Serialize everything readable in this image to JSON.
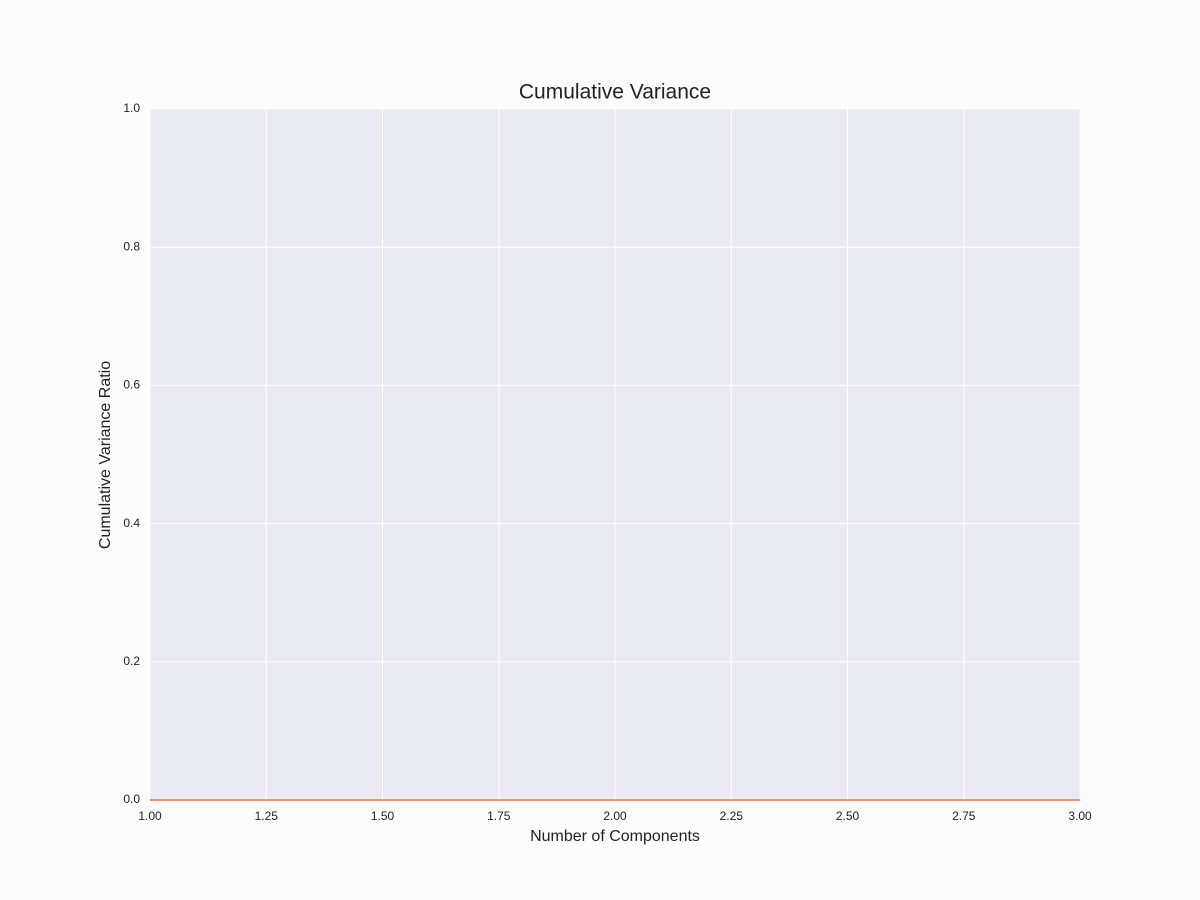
{
  "chart_data": {
    "type": "line",
    "title": "Cumulative Variance",
    "xlabel": "Number of Components",
    "ylabel": "Cumulative Variance Ratio",
    "x": [
      1,
      2,
      3
    ],
    "series": [
      {
        "name": "Cumulative Variance",
        "color": "#f4956f",
        "values": [
          0,
          0,
          0
        ]
      }
    ],
    "xlim": [
      1,
      3
    ],
    "ylim": [
      0,
      1
    ],
    "xticks": [
      {
        "value": 1,
        "label": "1.00"
      },
      {
        "value": 1.25,
        "label": "1.25"
      },
      {
        "value": 1.5,
        "label": "1.50"
      },
      {
        "value": 1.75,
        "label": "1.75"
      },
      {
        "value": 2,
        "label": "2.00"
      },
      {
        "value": 2.25,
        "label": "2.25"
      },
      {
        "value": 2.5,
        "label": "2.50"
      },
      {
        "value": 2.75,
        "label": "2.75"
      },
      {
        "value": 3,
        "label": "3.00"
      }
    ],
    "yticks": [
      {
        "value": 0,
        "label": "0.0"
      },
      0.2,
      0.4,
      0.6,
      0.8,
      {
        "value": 1,
        "label": "1.0"
      }
    ],
    "grid": true
  }
}
